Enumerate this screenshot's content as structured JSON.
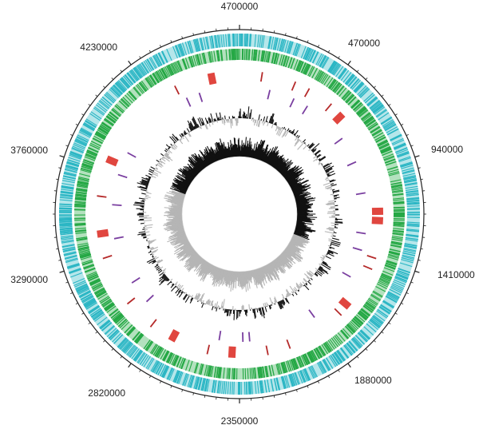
{
  "map": {
    "genome_length": 4700000,
    "start_label": "4700000",
    "position_labels": [
      "470000",
      "940000",
      "1410000",
      "1880000",
      "2350000",
      "2820000",
      "3290000",
      "3760000",
      "4230000"
    ]
  },
  "colors": {
    "background": "#ffffff",
    "outer_circle": "#222222",
    "cds_forward": "#2bb6c4",
    "cds_reverse": "#25a845",
    "rna_features": "#b52a2a",
    "large_features": "#e0463f",
    "other_features": "#7a3fa0",
    "gc_content": "#111111",
    "gc_skew_positive": "#111111",
    "gc_skew_negative": "#b5b5b5"
  },
  "tracks": [
    {
      "name": "cds_forward",
      "type": "ticks"
    },
    {
      "name": "cds_reverse",
      "type": "ticks"
    },
    {
      "name": "rna_features",
      "type": "marks"
    },
    {
      "name": "other_features",
      "type": "marks"
    },
    {
      "name": "gc_content",
      "type": "histogram"
    },
    {
      "name": "gc_skew",
      "type": "histogram"
    }
  ],
  "feature_marks": [
    {
      "pos": 120000,
      "track": "rna",
      "kind": "small"
    },
    {
      "pos": 300000,
      "track": "rna",
      "kind": "small"
    },
    {
      "pos": 380000,
      "track": "rna",
      "kind": "small"
    },
    {
      "pos": 520000,
      "track": "rna",
      "kind": "small"
    },
    {
      "pos": 600000,
      "track": "rna",
      "kind": "large"
    },
    {
      "pos": 1160000,
      "track": "rna",
      "kind": "large"
    },
    {
      "pos": 1210000,
      "track": "rna",
      "kind": "large"
    },
    {
      "pos": 1410000,
      "track": "rna",
      "kind": "small"
    },
    {
      "pos": 1470000,
      "track": "rna",
      "kind": "small"
    },
    {
      "pos": 1700000,
      "track": "rna",
      "kind": "large"
    },
    {
      "pos": 1760000,
      "track": "rna",
      "kind": "small"
    },
    {
      "pos": 2080000,
      "track": "rna",
      "kind": "small"
    },
    {
      "pos": 2200000,
      "track": "rna",
      "kind": "small"
    },
    {
      "pos": 2390000,
      "track": "rna",
      "kind": "large"
    },
    {
      "pos": 2520000,
      "track": "rna",
      "kind": "small"
    },
    {
      "pos": 2720000,
      "track": "rna",
      "kind": "large"
    },
    {
      "pos": 2850000,
      "track": "rna",
      "kind": "small"
    },
    {
      "pos": 3020000,
      "track": "rna",
      "kind": "small"
    },
    {
      "pos": 3290000,
      "track": "rna",
      "kind": "small"
    },
    {
      "pos": 3420000,
      "track": "rna",
      "kind": "large"
    },
    {
      "pos": 3620000,
      "track": "rna",
      "kind": "small"
    },
    {
      "pos": 3820000,
      "track": "rna",
      "kind": "large"
    },
    {
      "pos": 4350000,
      "track": "rna",
      "kind": "small"
    },
    {
      "pos": 4550000,
      "track": "rna",
      "kind": "large"
    },
    {
      "pos": 180000,
      "track": "other",
      "kind": "small"
    },
    {
      "pos": 330000,
      "track": "other",
      "kind": "small"
    },
    {
      "pos": 420000,
      "track": "other",
      "kind": "small"
    },
    {
      "pos": 700000,
      "track": "other",
      "kind": "small"
    },
    {
      "pos": 860000,
      "track": "other",
      "kind": "small"
    },
    {
      "pos": 1050000,
      "track": "other",
      "kind": "small"
    },
    {
      "pos": 1290000,
      "track": "other",
      "kind": "small"
    },
    {
      "pos": 1390000,
      "track": "other",
      "kind": "small"
    },
    {
      "pos": 1560000,
      "track": "other",
      "kind": "small"
    },
    {
      "pos": 1880000,
      "track": "other",
      "kind": "small"
    },
    {
      "pos": 2290000,
      "track": "other",
      "kind": "small"
    },
    {
      "pos": 2330000,
      "track": "other",
      "kind": "small"
    },
    {
      "pos": 2470000,
      "track": "other",
      "kind": "small"
    },
    {
      "pos": 2960000,
      "track": "other",
      "kind": "small"
    },
    {
      "pos": 3100000,
      "track": "other",
      "kind": "small"
    },
    {
      "pos": 3380000,
      "track": "other",
      "kind": "small"
    },
    {
      "pos": 3580000,
      "track": "other",
      "kind": "small"
    },
    {
      "pos": 3760000,
      "track": "other",
      "kind": "small"
    },
    {
      "pos": 3900000,
      "track": "other",
      "kind": "small"
    },
    {
      "pos": 4380000,
      "track": "other",
      "kind": "small"
    },
    {
      "pos": 4460000,
      "track": "other",
      "kind": "small"
    }
  ]
}
